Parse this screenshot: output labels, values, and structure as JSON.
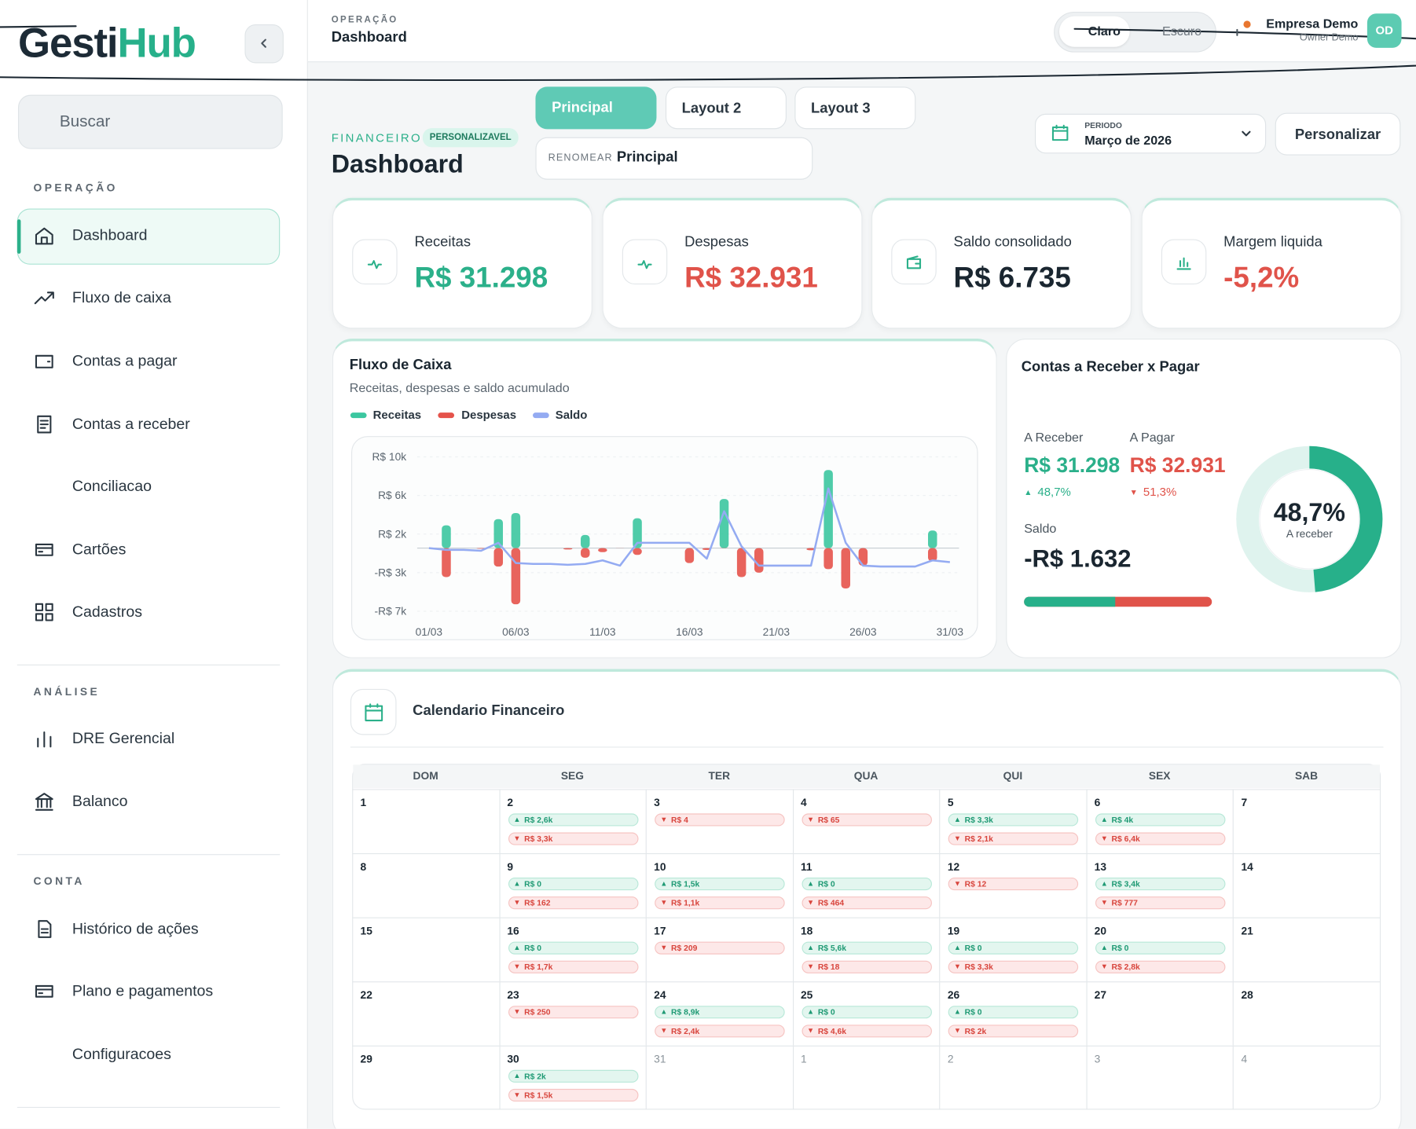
{
  "sidebar": {
    "logo": [
      "Gesti",
      "Hub"
    ],
    "search": "Buscar",
    "sections": [
      {
        "title": "OPERAÇÃO",
        "items": [
          "Dashboard",
          "Fluxo de caixa",
          "Contas a pagar",
          "Contas a receber",
          "Conciliacao",
          "Cartões",
          "Cadastros"
        ]
      },
      {
        "title": "ANÁLISE",
        "items": [
          "DRE Gerencial",
          "Balanco"
        ]
      },
      {
        "title": "CONTA",
        "items": [
          "Histórico de ações",
          "Plano e pagamentos",
          "Configuracoes"
        ]
      }
    ]
  },
  "header": {
    "eyebrow": "OPERAÇÃO",
    "title": "Dashboard",
    "theme": [
      "Claro",
      "Escuro"
    ],
    "company": "Empresa Demo",
    "role": "Owner Demo",
    "avatar": "OD"
  },
  "toolbar": {
    "tabs": [
      "Principal",
      "Layout 2",
      "Layout 3"
    ],
    "rename_label": "RENOMEAR",
    "rename_value": "Principal",
    "eyebrow": "FINANCEIRO",
    "badge": "PERSONALIZAVEL",
    "title": "Dashboard",
    "period_label": "PERIODO",
    "period_value": "Março de 2026",
    "customize": "Personalizar"
  },
  "kpis": [
    {
      "label": "Receitas",
      "value": "R$ 31.298"
    },
    {
      "label": "Despesas",
      "value": "R$ 32.931"
    },
    {
      "label": "Saldo consolidado",
      "value": "R$ 6.735"
    },
    {
      "label": "Margem liquida",
      "value": "-5,2%"
    }
  ],
  "cash_flow": {
    "type": "bar",
    "title": "Fluxo de Caixa",
    "subtitle": "Receitas, despesas e saldo acumulado",
    "categories": [
      "01/03",
      null,
      null,
      null,
      null,
      "06/03",
      null,
      null,
      null,
      null,
      "11/03",
      null,
      null,
      null,
      null,
      "16/03",
      null,
      null,
      null,
      null,
      "21/03",
      null,
      null,
      null,
      null,
      "26/03",
      null,
      null,
      null,
      null,
      "31/03"
    ],
    "series": [
      {
        "name": "Receitas",
        "color": "#3cc7a0",
        "values": [
          null,
          2600,
          null,
          null,
          3300,
          4000,
          null,
          null,
          0,
          1500,
          0,
          null,
          3400,
          null,
          null,
          0,
          null,
          5600,
          0,
          0,
          null,
          null,
          null,
          8900,
          0,
          0,
          null,
          null,
          null,
          2000,
          null
        ]
      },
      {
        "name": "Despesas",
        "color": "#e5534b",
        "values": [
          null,
          -3300,
          -4,
          -65,
          -2100,
          -6400,
          null,
          null,
          -162,
          -1100,
          -464,
          -12,
          -777,
          null,
          null,
          -1700,
          -209,
          -18,
          -3300,
          -2800,
          null,
          null,
          -250,
          -2400,
          -4600,
          -2000,
          null,
          null,
          null,
          -1500,
          null
        ]
      },
      {
        "name": "Saldo",
        "type": "line",
        "color": "#94abf2",
        "values": [
          0,
          -200,
          -200,
          -300,
          600,
          -1700,
          -1800,
          -1800,
          -1900,
          -1800,
          -1400,
          -2000,
          600,
          600,
          600,
          600,
          -1200,
          4200,
          200,
          -2000,
          -2000,
          -2000,
          -2000,
          6800,
          600,
          -2000,
          -2100,
          -2100,
          -2100,
          -1400,
          -1600
        ]
      }
    ],
    "ylim": [
      -7200,
      10400
    ],
    "yticks": [
      {
        "value": 10400,
        "label": "R$ 10k"
      },
      {
        "value": 6000,
        "label": "R$ 6k"
      },
      {
        "value": 1600,
        "label": "R$ 2k"
      },
      {
        "value": -2800,
        "label": "-R$ 3k"
      },
      {
        "value": -7200,
        "label": "-R$ 7k"
      }
    ],
    "grid": true
  },
  "receivables": {
    "title": "Contas a Receber x Pagar",
    "receive": {
      "label": "A Receber",
      "value": "R$ 31.298",
      "change": "48,7%"
    },
    "pay": {
      "label": "A Pagar",
      "value": "R$ 32.931",
      "change": "51,3%"
    },
    "balance": {
      "label": "Saldo",
      "value": "-R$ 1.632"
    },
    "donut": {
      "value": 48.7,
      "label": "48,7%",
      "caption": "A receber"
    }
  },
  "calendar": {
    "title": "Calendario Financeiro",
    "weekdays": [
      "DOM",
      "SEG",
      "TER",
      "QUA",
      "QUI",
      "SEX",
      "SAB"
    ],
    "weeks": [
      [
        {
          "day": "1"
        },
        {
          "day": "2",
          "in": "R$ 2,6k",
          "out": "R$ 3,3k"
        },
        {
          "day": "3",
          "out": "R$ 4"
        },
        {
          "day": "4",
          "out": "R$ 65"
        },
        {
          "day": "5",
          "in": "R$ 3,3k",
          "out": "R$ 2,1k"
        },
        {
          "day": "6",
          "in": "R$ 4k",
          "out": "R$ 6,4k"
        },
        {
          "day": "7"
        }
      ],
      [
        {
          "day": "8"
        },
        {
          "day": "9",
          "in": "R$ 0",
          "out": "R$ 162"
        },
        {
          "day": "10",
          "in": "R$ 1,5k",
          "out": "R$ 1,1k"
        },
        {
          "day": "11",
          "in": "R$ 0",
          "out": "R$ 464"
        },
        {
          "day": "12",
          "out": "R$ 12"
        },
        {
          "day": "13",
          "in": "R$ 3,4k",
          "out": "R$ 777"
        },
        {
          "day": "14"
        }
      ],
      [
        {
          "day": "15"
        },
        {
          "day": "16",
          "in": "R$ 0",
          "out": "R$ 1,7k"
        },
        {
          "day": "17",
          "out": "R$ 209"
        },
        {
          "day": "18",
          "in": "R$ 5,6k",
          "out": "R$ 18"
        },
        {
          "day": "19",
          "in": "R$ 0",
          "out": "R$ 3,3k"
        },
        {
          "day": "20",
          "in": "R$ 0",
          "out": "R$ 2,8k"
        },
        {
          "day": "21"
        }
      ],
      [
        {
          "day": "22"
        },
        {
          "day": "23",
          "out": "R$ 250"
        },
        {
          "day": "24",
          "in": "R$ 8,9k",
          "out": "R$ 2,4k"
        },
        {
          "day": "25",
          "in": "R$ 0",
          "out": "R$ 4,6k"
        },
        {
          "day": "26",
          "in": "R$ 0",
          "out": "R$ 2k"
        },
        {
          "day": "27"
        },
        {
          "day": "28"
        }
      ],
      [
        {
          "day": "29"
        },
        {
          "day": "30",
          "in": "R$ 2k",
          "out": "R$ 1,5k"
        },
        {
          "day": "31"
        },
        {
          "day": "1"
        },
        {
          "day": "2"
        },
        {
          "day": "3"
        },
        {
          "day": "4"
        }
      ]
    ]
  }
}
